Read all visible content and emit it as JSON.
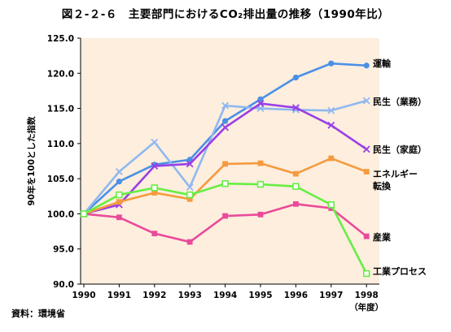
{
  "figure_title": "図２-２-６　主要部門におけるCO₂排出量の推移（1990年比）",
  "source_note": "資料：環境省",
  "chart_data": {
    "type": "line",
    "title": "図２-２-６　主要部門におけるCO₂排出量の推移（1990年比）",
    "xlabel": "（年度）",
    "ylabel": "90年を100とした指数",
    "x": [
      "1990",
      "1991",
      "1992",
      "1993",
      "1994",
      "1995",
      "1996",
      "1997",
      "1998"
    ],
    "y_ticks": [
      "125.0",
      "120.0",
      "115.0",
      "110.0",
      "105.0",
      "100.0",
      "95.0",
      "90.0"
    ],
    "ylim": [
      90,
      125
    ],
    "grid": false,
    "plot_background": "#fdeede",
    "series": [
      {
        "name": "運輸",
        "color": "#4a90e6",
        "marker": "circle",
        "values": [
          100.0,
          104.6,
          107.0,
          107.7,
          113.2,
          116.3,
          119.4,
          121.4,
          121.1
        ]
      },
      {
        "name": "民生（業務）",
        "color": "#8fb8f0",
        "marker": "x",
        "values": [
          100.0,
          106.0,
          110.2,
          103.8,
          115.4,
          115.0,
          114.8,
          114.7,
          116.1
        ]
      },
      {
        "name": "民生（家庭）",
        "color": "#9a3ee6",
        "marker": "x",
        "values": [
          100.0,
          101.3,
          106.8,
          107.1,
          112.3,
          115.7,
          115.1,
          112.6,
          109.2
        ]
      },
      {
        "name": "エネルギー転換",
        "label_lines": [
          "エネルギー",
          "転換"
        ],
        "color": "#f59a3e",
        "marker": "square",
        "values": [
          100.0,
          101.7,
          103.0,
          102.1,
          107.1,
          107.2,
          105.7,
          107.9,
          106.0
        ]
      },
      {
        "name": "産業",
        "color": "#ea4a9a",
        "marker": "square",
        "values": [
          100.0,
          99.5,
          97.2,
          96.0,
          99.7,
          99.9,
          101.4,
          100.8,
          96.8
        ]
      },
      {
        "name": "工業プロセス",
        "color": "#66ee44",
        "marker": "square-open",
        "values": [
          100.0,
          102.7,
          103.7,
          102.7,
          104.3,
          104.2,
          103.9,
          101.3,
          91.5
        ]
      }
    ]
  }
}
